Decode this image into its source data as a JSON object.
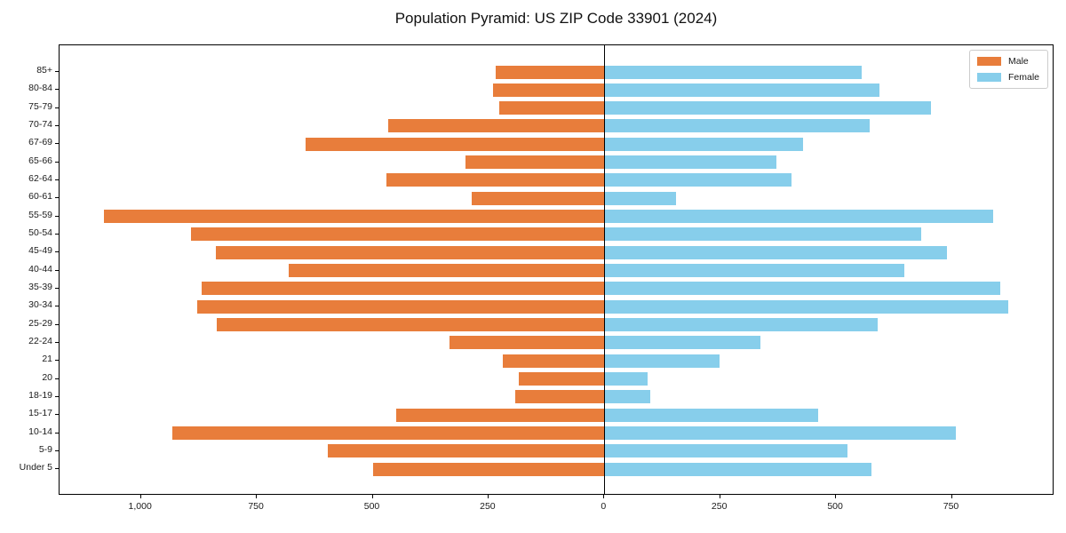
{
  "title": "Population Pyramid: US ZIP Code 33901 (2024)",
  "legend": {
    "male_label": "Male",
    "female_label": "Female"
  },
  "colors": {
    "male": "#e87d3b",
    "female": "#87ceeb",
    "axis": "#000000",
    "legend_border": "#cccccc",
    "background": "#ffffff"
  },
  "chart_data": {
    "type": "bar",
    "subtype": "population-pyramid",
    "orientation": "horizontal",
    "title": "Population Pyramid: US ZIP Code 33901 (2024)",
    "categories_top_to_bottom": [
      "85+",
      "80-84",
      "75-79",
      "70-74",
      "67-69",
      "65-66",
      "62-64",
      "60-61",
      "55-59",
      "50-54",
      "45-49",
      "40-44",
      "35-39",
      "30-34",
      "25-29",
      "22-24",
      "21",
      "20",
      "18-19",
      "15-17",
      "10-14",
      "5-9",
      "Under 5"
    ],
    "series": [
      {
        "name": "Male",
        "side": "left",
        "color": "#e87d3b",
        "values": [
          234,
          240,
          226,
          467,
          644,
          300,
          471,
          287,
          1080,
          893,
          839,
          681,
          869,
          878,
          836,
          334,
          219,
          185,
          193,
          449,
          932,
          596,
          500
        ]
      },
      {
        "name": "Female",
        "side": "right",
        "color": "#87ceeb",
        "values": [
          554,
          593,
          704,
          572,
          427,
          370,
          402,
          154,
          837,
          682,
          738,
          646,
          853,
          871,
          588,
          335,
          248,
          92,
          98,
          460,
          758,
          524,
          576
        ]
      }
    ],
    "x_tick_values": [
      -1000,
      -750,
      -500,
      -250,
      0,
      250,
      500,
      750
    ],
    "x_tick_labels": [
      "1,000",
      "750",
      "500",
      "250",
      "0",
      "250",
      "500",
      "750"
    ],
    "xlim": [
      -1177,
      970
    ],
    "xlabel": "",
    "ylabel": "",
    "grid": false,
    "legend_position": "upper right",
    "zero_line": true
  }
}
